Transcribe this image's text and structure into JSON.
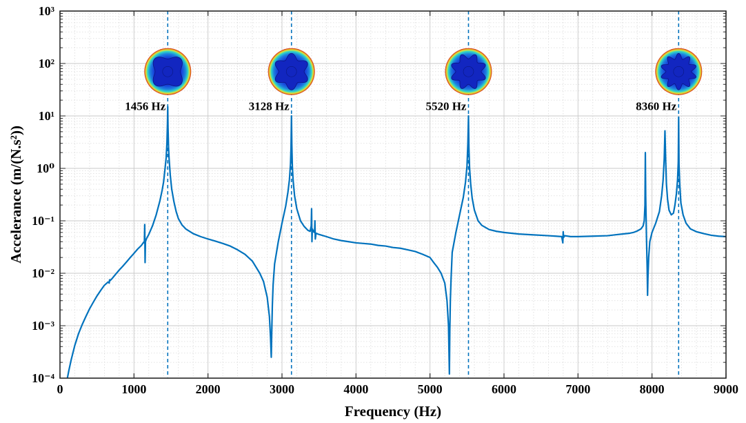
{
  "chart_data": {
    "type": "line",
    "xlabel": "Frequency (Hz)",
    "ylabel": "Accelerance (m/(N.s²))",
    "xscale": "linear",
    "yscale": "log",
    "xlim": [
      0,
      9000
    ],
    "ylim": [
      0.0001,
      1000
    ],
    "xticks": [
      0,
      1000,
      2000,
      3000,
      4000,
      5000,
      6000,
      7000,
      8000,
      9000
    ],
    "ytick_labels": [
      "10⁻⁴",
      "10⁻³",
      "10⁻²",
      "10⁻¹",
      "10⁰",
      "10¹",
      "10²",
      "10³"
    ],
    "grid": true,
    "series": [
      {
        "color": "#0072BD",
        "x": [
          100,
          120,
          150,
          200,
          250,
          300,
          350,
          400,
          450,
          500,
          550,
          600,
          650,
          665,
          670,
          675,
          700,
          750,
          800,
          850,
          900,
          950,
          1000,
          1050,
          1100,
          1130,
          1140,
          1145,
          1150,
          1155,
          1160,
          1170,
          1200,
          1250,
          1300,
          1350,
          1380,
          1400,
          1420,
          1435,
          1445,
          1452,
          1456,
          1460,
          1467,
          1475,
          1490,
          1510,
          1540,
          1570,
          1600,
          1650,
          1700,
          1800,
          1900,
          2000,
          2100,
          2200,
          2300,
          2400,
          2500,
          2600,
          2700,
          2750,
          2800,
          2830,
          2845,
          2855,
          2862,
          2870,
          2880,
          2900,
          2950,
          3000,
          3050,
          3080,
          3100,
          3115,
          3122,
          3128,
          3133,
          3140,
          3150,
          3170,
          3200,
          3250,
          3300,
          3350,
          3380,
          3395,
          3400,
          3405,
          3410,
          3430,
          3440,
          3445,
          3450,
          3460,
          3500,
          3600,
          3700,
          3800,
          3900,
          4000,
          4100,
          4200,
          4300,
          4400,
          4500,
          4600,
          4700,
          4800,
          4900,
          5000,
          5050,
          5100,
          5150,
          5200,
          5230,
          5250,
          5262,
          5268,
          5275,
          5285,
          5300,
          5350,
          5400,
          5450,
          5480,
          5500,
          5512,
          5520,
          5526,
          5535,
          5550,
          5570,
          5600,
          5650,
          5700,
          5800,
          5900,
          6000,
          6100,
          6200,
          6300,
          6400,
          6500,
          6600,
          6700,
          6780,
          6795,
          6800,
          6805,
          6820,
          6900,
          7000,
          7200,
          7400,
          7500,
          7600,
          7700,
          7750,
          7800,
          7850,
          7880,
          7895,
          7905,
          7910,
          7915,
          7925,
          7935,
          7940,
          7945,
          7955,
          7970,
          8000,
          8050,
          8100,
          8130,
          8150,
          8165,
          8175,
          8185,
          8195,
          8210,
          8230,
          8260,
          8290,
          8310,
          8330,
          8345,
          8355,
          8360,
          8365,
          8375,
          8390,
          8420,
          8460,
          8520,
          8600,
          8700,
          8800,
          8900,
          9000
        ],
        "y": [
          0.0001,
          0.00014,
          0.00022,
          0.00042,
          0.0007,
          0.00105,
          0.0015,
          0.0021,
          0.0028,
          0.0037,
          0.0047,
          0.0059,
          0.0068,
          0.0065,
          0.0075,
          0.0072,
          0.0078,
          0.0095,
          0.0115,
          0.0137,
          0.0165,
          0.02,
          0.024,
          0.029,
          0.034,
          0.039,
          0.038,
          0.085,
          0.016,
          0.04,
          0.042,
          0.046,
          0.055,
          0.08,
          0.13,
          0.24,
          0.38,
          0.55,
          1.0,
          1.6,
          3.0,
          7.0,
          15,
          6.0,
          2.5,
          1.5,
          0.75,
          0.4,
          0.23,
          0.15,
          0.11,
          0.083,
          0.07,
          0.057,
          0.05,
          0.045,
          0.041,
          0.037,
          0.033,
          0.028,
          0.023,
          0.017,
          0.01,
          0.007,
          0.0035,
          0.0015,
          0.0006,
          0.00025,
          0.0008,
          0.0025,
          0.006,
          0.015,
          0.04,
          0.09,
          0.19,
          0.35,
          0.6,
          1.2,
          2.5,
          10,
          2.8,
          1.1,
          0.6,
          0.3,
          0.17,
          0.1,
          0.078,
          0.066,
          0.063,
          0.08,
          0.17,
          0.04,
          0.07,
          0.061,
          0.06,
          0.1,
          0.045,
          0.058,
          0.055,
          0.05,
          0.045,
          0.042,
          0.04,
          0.038,
          0.037,
          0.036,
          0.034,
          0.033,
          0.031,
          0.03,
          0.028,
          0.026,
          0.023,
          0.02,
          0.016,
          0.013,
          0.01,
          0.0065,
          0.003,
          0.001,
          0.00012,
          0.0008,
          0.003,
          0.008,
          0.025,
          0.06,
          0.13,
          0.28,
          0.55,
          1.1,
          3.0,
          10,
          2.5,
          1.0,
          0.5,
          0.27,
          0.16,
          0.1,
          0.082,
          0.068,
          0.063,
          0.06,
          0.058,
          0.056,
          0.055,
          0.054,
          0.053,
          0.052,
          0.051,
          0.05,
          0.038,
          0.062,
          0.048,
          0.052,
          0.05,
          0.05,
          0.051,
          0.052,
          0.054,
          0.056,
          0.058,
          0.06,
          0.064,
          0.07,
          0.08,
          0.1,
          0.2,
          2.0,
          0.3,
          0.05,
          0.012,
          0.0038,
          0.008,
          0.02,
          0.04,
          0.06,
          0.09,
          0.15,
          0.3,
          0.6,
          1.5,
          5.2,
          1.4,
          0.5,
          0.26,
          0.16,
          0.13,
          0.14,
          0.2,
          0.33,
          0.6,
          1.3,
          9.5,
          1.2,
          0.5,
          0.22,
          0.13,
          0.09,
          0.07,
          0.062,
          0.057,
          0.053,
          0.051,
          0.05
        ]
      }
    ],
    "annotations": [
      {
        "frequency": 1456,
        "label": "1456 Hz",
        "mode_lobes": 4
      },
      {
        "frequency": 3128,
        "label": "3128 Hz",
        "mode_lobes": 6
      },
      {
        "frequency": 5520,
        "label": "5520 Hz",
        "mode_lobes": 8
      },
      {
        "frequency": 8360,
        "label": "8360 Hz",
        "mode_lobes": 10
      }
    ],
    "annotation_style": {
      "line_color": "#0072BD",
      "dashed": true
    }
  }
}
